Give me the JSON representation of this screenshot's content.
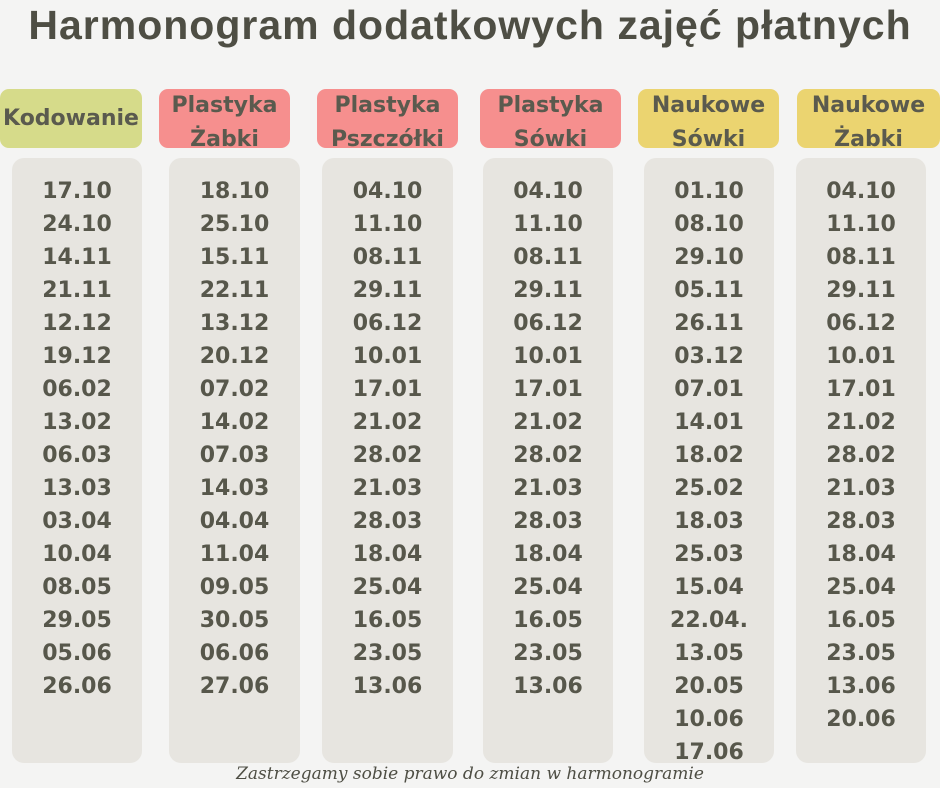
{
  "title": "Harmonogram dodatkowych zajęć płatnych",
  "columns": [
    {
      "header": [
        "Kodowanie"
      ],
      "dates": [
        "17.10",
        "24.10",
        "14.11",
        "21.11",
        "12.12",
        "19.12",
        "06.02",
        "13.02",
        "06.03",
        "13.03",
        "03.04",
        "10.04",
        "08.05",
        "29.05",
        "05.06",
        "26.06"
      ]
    },
    {
      "header": [
        "Plastyka",
        "Żabki"
      ],
      "dates": [
        "18.10",
        "25.10",
        "15.11",
        "22.11",
        "13.12",
        "20.12",
        "07.02",
        "14.02",
        "07.03",
        "14.03",
        "04.04",
        "11.04",
        "09.05",
        "30.05",
        "06.06",
        "27.06"
      ]
    },
    {
      "header": [
        "Plastyka",
        "Pszczółki"
      ],
      "dates": [
        "04.10",
        "11.10",
        "08.11",
        "29.11",
        "06.12",
        "10.01",
        "17.01",
        "21.02",
        "28.02",
        "21.03",
        "28.03",
        "18.04",
        "25.04",
        "16.05",
        "23.05",
        "13.06"
      ]
    },
    {
      "header": [
        "Plastyka",
        "Sówki"
      ],
      "dates": [
        "04.10",
        "11.10",
        "08.11",
        "29.11",
        "06.12",
        "10.01",
        "17.01",
        "21.02",
        "28.02",
        "21.03",
        "28.03",
        "18.04",
        "25.04",
        "16.05",
        "23.05",
        "13.06"
      ]
    },
    {
      "header": [
        "Naukowe",
        "Sówki"
      ],
      "dates": [
        "01.10",
        "08.10",
        "29.10",
        "05.11",
        "26.11",
        "03.12",
        "07.01",
        "14.01",
        "18.02",
        "25.02",
        "18.03",
        "25.03",
        "15.04",
        "22.04.",
        "13.05",
        "20.05",
        "10.06",
        "17.06"
      ]
    },
    {
      "header": [
        "Naukowe",
        "Żabki"
      ],
      "dates": [
        "04.10",
        "11.10",
        "08.11",
        "29.11",
        "06.12",
        "10.01",
        "17.01",
        "21.02",
        "28.02",
        "21.03",
        "28.03",
        "18.04",
        "25.04",
        "16.05",
        "23.05",
        "13.06",
        "20.06"
      ]
    }
  ],
  "footer": "Zastrzegamy sobie prawo do zmian w harmonogramie"
}
